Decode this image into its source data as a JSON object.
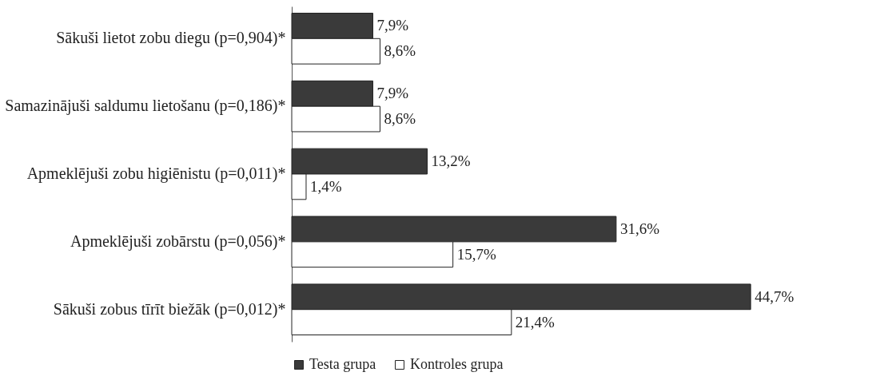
{
  "chart_data": {
    "type": "bar",
    "orientation": "horizontal",
    "legend": "bottom",
    "categories": [
      "Sākuši lietot zobu diegu (p=0,904)*",
      "Samazinājuši saldumu lietošanu (p=0,186)*",
      "Apmeklējuši zobu higiēnistu (p=0,011)*",
      "Apmeklējuši zobārstu (p=0,056)*",
      "Sākuši zobus tīrīt biežāk (p=0,012)*"
    ],
    "series": [
      {
        "name": "Testa grupa",
        "color": "#3a3a3a",
        "values": [
          7.9,
          7.9,
          13.2,
          31.6,
          44.7
        ],
        "value_labels": [
          "7,9%",
          "7,9%",
          "13,2%",
          "31,6%",
          "44,7%"
        ]
      },
      {
        "name": "Kontroles grupa",
        "color": "#ffffff",
        "values": [
          8.6,
          8.6,
          1.4,
          15.7,
          21.4
        ],
        "value_labels": [
          "8,6%",
          "8,6%",
          "1,4%",
          "15,7%",
          "21,4%"
        ]
      }
    ]
  }
}
